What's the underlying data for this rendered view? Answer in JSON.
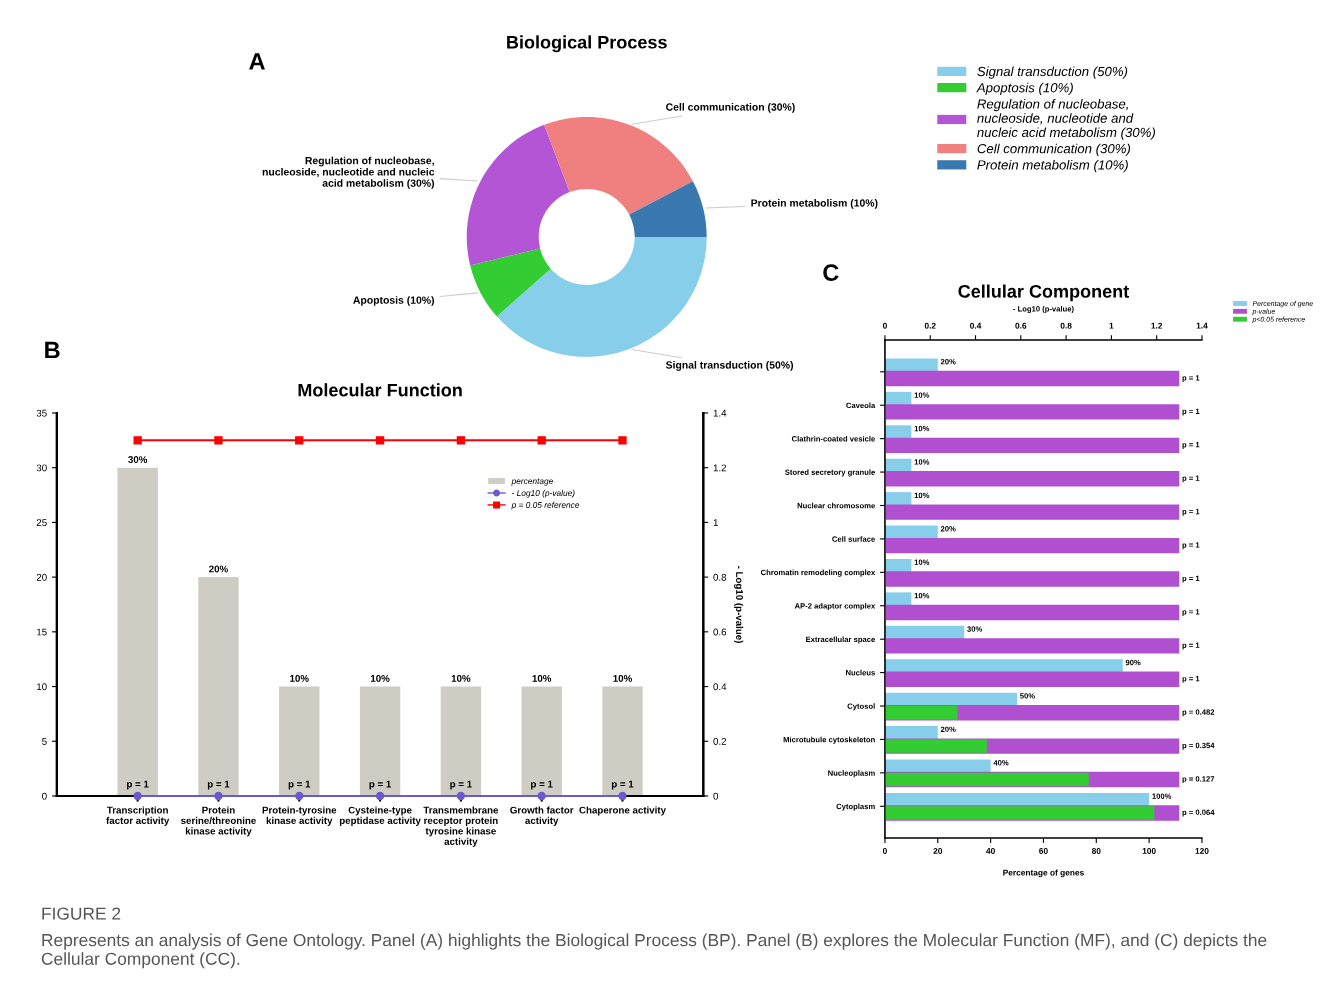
{
  "chart_data": [
    {
      "type": "donut",
      "title": "Biological Process",
      "annotations": [
        "A",
        "FIGURE 2",
        "Represents an analysis of Gene Ontology. Panel (A) highlights the Biological Process (BP). Panel (B) explores the Molecular Function (MF), and (C) depicts the Cellular Component (CC)."
      ],
      "categories": [
        "Signal transduction (50%)",
        "Apoptosis (10%)",
        "Regulation of nucleobase, nucleoside, nucleotide and nucleic acid metabolism (30%)",
        "Cell communication (30%)",
        "Protein metabolism (10%)"
      ],
      "values": [
        50,
        10,
        30,
        30,
        10
      ],
      "colors": [
        "#87ceeb",
        "#33cc33",
        "#b455d6",
        "#f08080",
        "#3a78b0"
      ],
      "legend": "right"
    },
    {
      "type": "bar",
      "title": "Molecular Function",
      "y2label": "- Log10 (p-value)",
      "annotations": [
        "B",
        {
          "text": "p = 1",
          "x": "Transcription factor activity",
          "y": 0
        },
        {
          "text": "p = 1",
          "x": "Protein serine/threonine kinase activity",
          "y": 0
        },
        {
          "text": "p = 1",
          "x": "Protein-tyrosine kinase activity",
          "y": 0
        },
        {
          "text": "p = 1",
          "x": "Cysteine-type peptidase activity",
          "y": 0
        },
        {
          "text": "p = 1",
          "x": "Transmembrane receptor protein tyrosine kinase activity",
          "y": 0
        },
        {
          "text": "p = 1",
          "x": "Growth factor activity",
          "y": 0
        },
        {
          "text": "p = 1",
          "x": "Chaperone activity",
          "y": 0
        }
      ],
      "categories": [
        "Transcription factor activity",
        "Protein serine/threonine kinase activity",
        "Protein-tyrosine kinase activity",
        "Cysteine-type peptidase activity",
        "Transmembrane receptor protein tyrosine kinase activity",
        "Growth factor activity",
        "Chaperone activity"
      ],
      "series": [
        {
          "name": "percentage",
          "color": "#cfccc3",
          "values": [
            30,
            20,
            10,
            10,
            10,
            10,
            10
          ],
          "value_labels": [
            "30%",
            "20%",
            "10%",
            "10%",
            "10%",
            "10%",
            "10%"
          ]
        },
        {
          "name": "- Log10 (p-value)",
          "type": "line",
          "axis": "y2",
          "marker": "circle",
          "color": "#6a5acd",
          "values": [
            0,
            0,
            0,
            0,
            0,
            0,
            0
          ]
        },
        {
          "name": "p = 0.05 reference",
          "type": "line",
          "axis": "y2",
          "marker": "square",
          "color": "#ff0000",
          "values": [
            1.3,
            1.3,
            1.3,
            1.3,
            1.3,
            1.3,
            1.3
          ]
        }
      ],
      "ylim": [
        0,
        35
      ],
      "yticks": [
        0,
        5,
        10,
        15,
        20,
        25,
        30,
        35
      ],
      "y2lim": [
        0,
        1.4
      ],
      "y2ticks": [
        0,
        0.2,
        0.4,
        0.6,
        0.8,
        1,
        1.2,
        1.4
      ],
      "legend": "top right",
      "grid": false
    },
    {
      "type": "bar",
      "orientation": "horizontal",
      "title": "Cellular Component",
      "xlabel": "Percentage of genes",
      "x2label": "- Log10 (p-value)",
      "annotations": [
        "C",
        {
          "text": "p = 1",
          "x": 111.4
        },
        {
          "text": "p = 1",
          "x": 111.4,
          "y": "Caveola"
        },
        {
          "text": "p = 1",
          "x": 111.4,
          "y": "Clathrin-coated vesicle"
        },
        {
          "text": "p = 1",
          "x": 111.4,
          "y": "Stored secretory granule"
        },
        {
          "text": "p = 1",
          "x": 111.4,
          "y": "Nuclear chromosome"
        },
        {
          "text": "p = 1",
          "x": 111.4,
          "y": "Cell surface"
        },
        {
          "text": "p = 1",
          "x": 111.4,
          "y": "Chromatin remodeling complex"
        },
        {
          "text": "p = 1",
          "x": 111.4,
          "y": "AP-2 adaptor complex"
        },
        {
          "text": "p = 1",
          "x": 111.4,
          "y": "Extracellular space"
        },
        {
          "text": "p = 1",
          "x": 111.4,
          "y": "Nucleus"
        },
        {
          "text": "p = 0.482",
          "x": 111.4,
          "y": "Cytosol"
        },
        {
          "text": "p = 0.354",
          "x": 111.4,
          "y": "Microtubule cytoskeleton"
        },
        {
          "text": "p = 0.127",
          "x": 111.4,
          "y": "Nucleoplasm"
        },
        {
          "text": "p = 0.064",
          "x": 111.4,
          "y": "Cytoplasm"
        }
      ],
      "categories": [
        null,
        "Caveola",
        "Clathrin-coated vesicle",
        "Stored secretory granule",
        "Nuclear chromosome",
        "Cell surface",
        "Chromatin remodeling complex",
        "AP-2 adaptor complex",
        "Extracellular space",
        "Nucleus",
        "Cytosol",
        "Microtubule cytoskeleton",
        "Nucleoplasm",
        "Cytoplasm"
      ],
      "series": [
        {
          "name": "Percentage of gene",
          "color": "#87ceeb",
          "values": [
            20,
            10,
            10,
            10,
            10,
            20,
            10,
            10,
            30,
            90,
            50,
            20,
            40,
            100
          ],
          "value_labels": [
            "20%",
            "10%",
            "10%",
            "10%",
            "10%",
            "20%",
            "10%",
            "10%",
            "30%",
            "90%",
            "50%",
            "20%",
            "40%",
            "100%"
          ]
        },
        {
          "name": "p-value",
          "axis": "x2",
          "color": "#b050d0",
          "values": [
            1.3,
            1.3,
            1.3,
            1.3,
            1.3,
            1.3,
            1.3,
            1.3,
            1.3,
            1.3,
            1.3,
            1.3,
            1.3,
            1.3
          ]
        },
        {
          "name": "p<0.05 reference",
          "axis": "x2",
          "color": "#33cc33",
          "values": [
            null,
            null,
            null,
            null,
            null,
            null,
            null,
            null,
            null,
            null,
            0.32,
            0.45,
            0.9,
            1.19
          ]
        }
      ],
      "xlim": [
        0,
        120
      ],
      "xticks": [
        0,
        20,
        40,
        60,
        80,
        100,
        120
      ],
      "x2lim": [
        0,
        1.4
      ],
      "x2ticks": [
        0,
        0.2,
        0.4,
        0.6,
        0.8,
        1,
        1.2,
        1.4
      ],
      "legend": "top right",
      "grid": false
    }
  ]
}
